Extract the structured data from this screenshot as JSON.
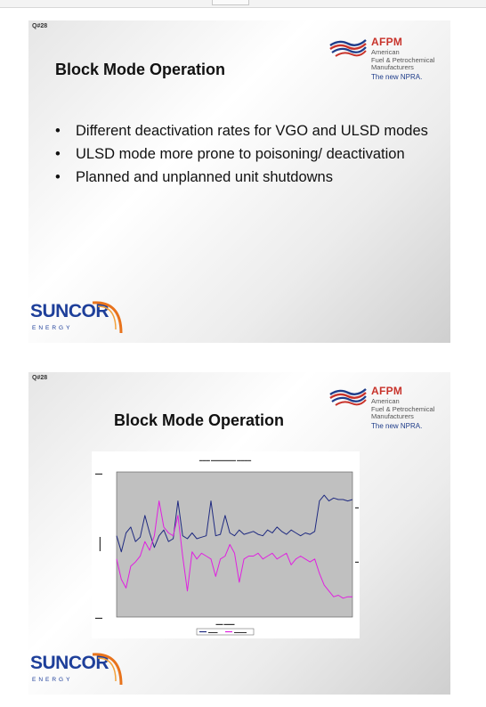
{
  "slides": [
    {
      "number": "Q#28",
      "title": "Block Mode Operation",
      "bullets": [
        "Different deactivation rates for VGO and ULSD modes",
        "ULSD mode more prone to poisoning/ deactivation",
        "Planned and unplanned unit shutdowns"
      ]
    },
    {
      "number": "Q#28",
      "title": "Block Mode Operation"
    }
  ],
  "logos": {
    "afpm_name": "AFPM",
    "afpm_sub_line1": "American",
    "afpm_sub_line2": "Fuel & Petrochemical",
    "afpm_sub_line3": "Manufacturers",
    "afpm_tagline": "The new NPRA.",
    "suncor_name": "SUNCOR",
    "suncor_sub": "ENERGY"
  },
  "colors": {
    "afpm_red": "#c8332b",
    "afpm_blue": "#1f3d8a",
    "suncor_blue": "#1e3f9a",
    "suncor_orange": "#e8731c",
    "plot_background": "#c0c0c0",
    "series_blue": "#1f2a80",
    "series_magenta": "#e020e0"
  },
  "chart_data": {
    "type": "line",
    "title": "",
    "xlabel": "",
    "ylabel": "",
    "ylim": [
      0,
      100
    ],
    "grid": false,
    "legend": "bottom",
    "x": [
      0,
      2,
      4,
      6,
      8,
      10,
      12,
      14,
      16,
      18,
      20,
      22,
      24,
      26,
      28,
      30,
      32,
      34,
      36,
      38,
      40,
      42,
      44,
      46,
      48,
      50,
      52,
      54,
      56,
      58,
      60,
      62,
      64,
      66,
      68,
      70,
      72,
      74,
      76,
      78,
      80,
      82,
      84,
      86,
      88,
      90,
      92,
      94,
      96,
      98,
      100
    ],
    "series": [
      {
        "values": [
          56,
          45,
          58,
          62,
          52,
          55,
          70,
          58,
          48,
          56,
          60,
          52,
          54,
          80,
          56,
          54,
          58,
          54,
          55,
          56,
          80,
          56,
          57,
          70,
          58,
          56,
          60,
          57,
          58,
          59,
          57,
          56,
          60,
          58,
          62,
          59,
          57,
          60,
          58,
          56,
          58,
          57,
          59,
          80,
          84,
          80,
          82,
          81,
          81,
          80,
          81
        ]
      },
      {
        "values": [
          40,
          26,
          20,
          35,
          38,
          42,
          52,
          46,
          56,
          80,
          62,
          58,
          56,
          70,
          42,
          18,
          45,
          40,
          44,
          42,
          40,
          28,
          40,
          42,
          50,
          44,
          24,
          40,
          42,
          42,
          44,
          40,
          42,
          44,
          40,
          42,
          44,
          36,
          40,
          42,
          40,
          38,
          40,
          30,
          22,
          18,
          14,
          15,
          13,
          14,
          14
        ]
      }
    ]
  }
}
